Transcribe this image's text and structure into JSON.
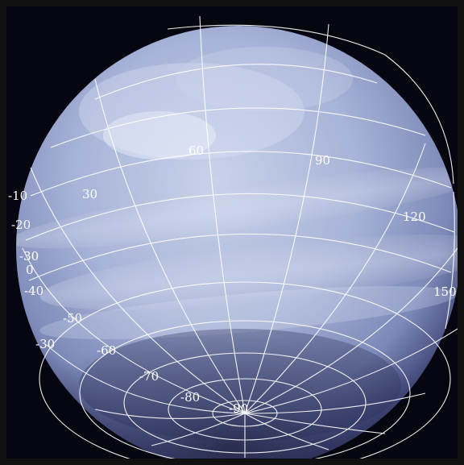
{
  "image": {
    "subject": "planet-sphere",
    "colors": {
      "frame": "#111111",
      "space": "#05060f",
      "planet_light": "#c8d2ea",
      "planet_mid": "#8d9bc6",
      "planet_dark": "#2a2f55",
      "grid": "#ffffff"
    }
  },
  "grid_labels": {
    "lon_60": "60",
    "lon_90": "90",
    "lon_30": "30",
    "lon_120": "120",
    "lon_150": "150",
    "lon_0": "0",
    "lon_m30": "-30",
    "lon_m10": "-10",
    "lon_m20": "-20",
    "lon_m30b": "-30",
    "lat_m40": "-40",
    "lat_m50": "-50",
    "lat_m60": "-60",
    "lat_m70": "-70",
    "lat_m80": "-80",
    "lat_m90": "-90"
  }
}
